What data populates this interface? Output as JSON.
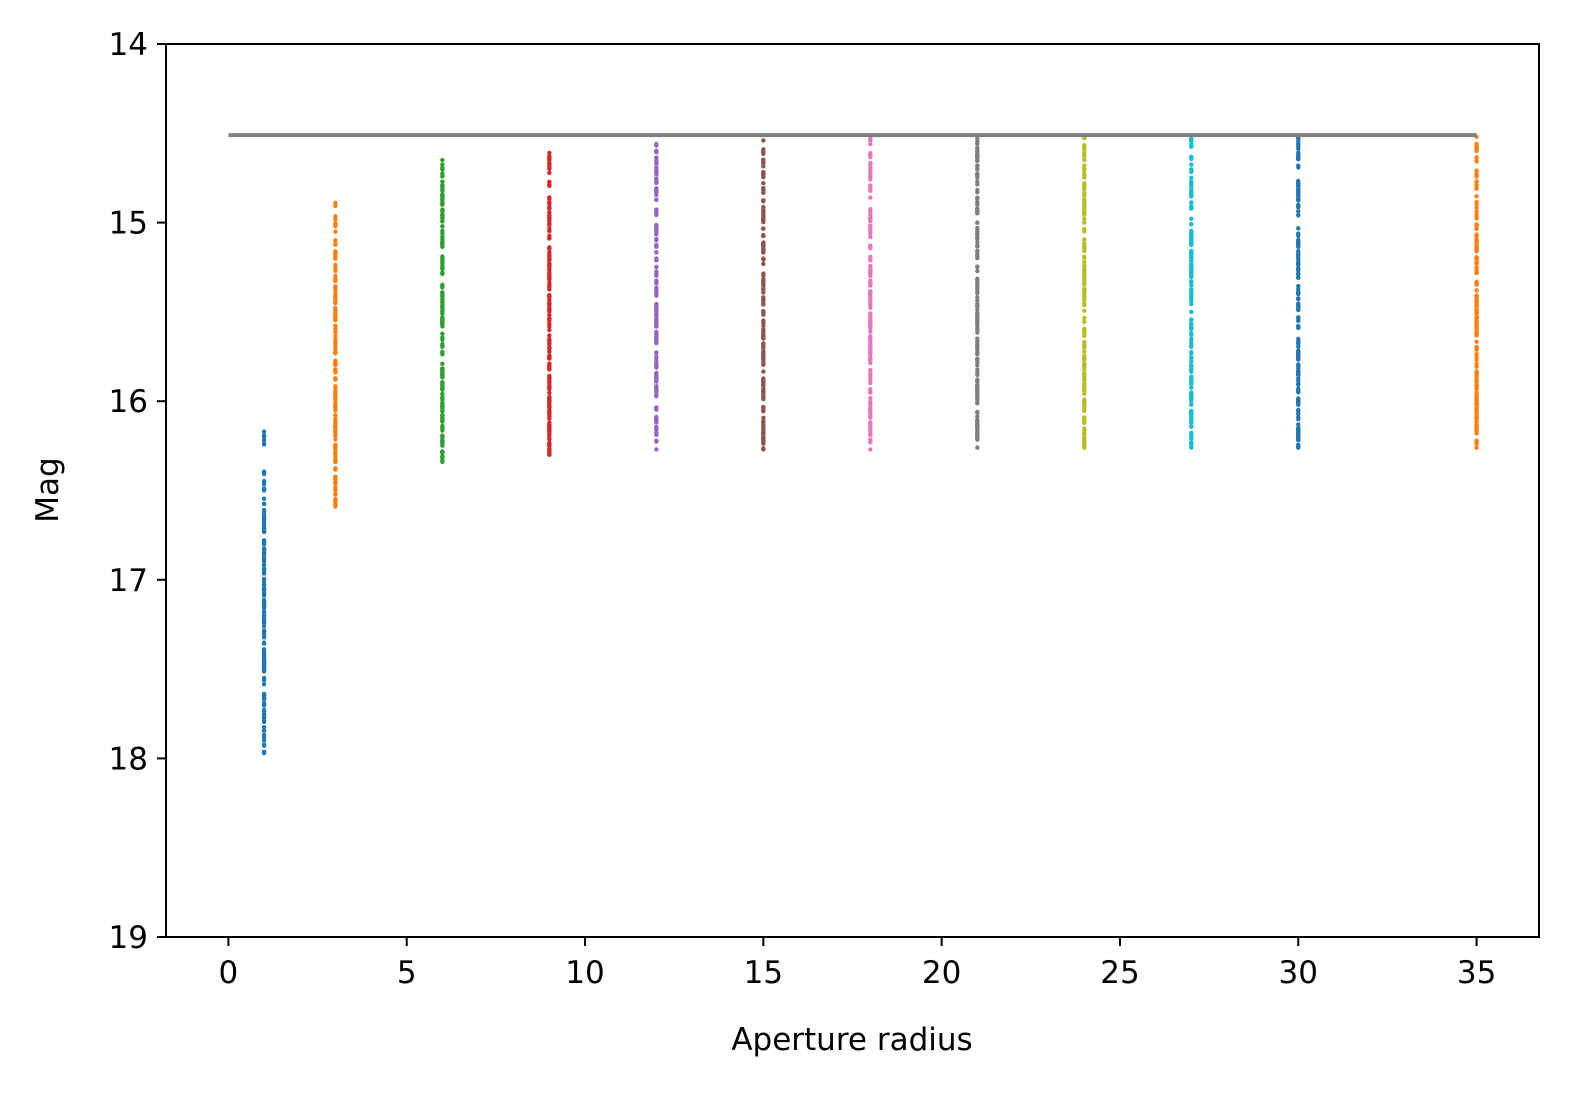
{
  "chart_data": {
    "type": "scatter",
    "title": "",
    "xlabel": "Aperture radius",
    "ylabel": "Mag",
    "xlim": [
      -1.75,
      36.75
    ],
    "ylim": [
      19,
      14
    ],
    "y_inverted": true,
    "grid": false,
    "legend": "none",
    "xticks": [
      "0",
      "5",
      "10",
      "15",
      "20",
      "25",
      "30",
      "35"
    ],
    "xtick_values": [
      0,
      5,
      10,
      15,
      20,
      25,
      30,
      35
    ],
    "yticks": [
      "14",
      "15",
      "16",
      "17",
      "18",
      "19"
    ],
    "ytick_values": [
      14,
      15,
      16,
      17,
      18,
      19
    ],
    "reference_line": {
      "x": [
        0,
        35
      ],
      "y": 14.51,
      "color": "#808080"
    },
    "series": [
      {
        "x": 1,
        "color": "#1f77b4",
        "min": 16.17,
        "max": 17.97
      },
      {
        "x": 3,
        "color": "#ff7f0e",
        "min": 14.89,
        "max": 16.59
      },
      {
        "x": 6,
        "color": "#2ca02c",
        "min": 14.65,
        "max": 16.34
      },
      {
        "x": 9,
        "color": "#d62728",
        "min": 14.61,
        "max": 16.3
      },
      {
        "x": 12,
        "color": "#9467bd",
        "min": 14.56,
        "max": 16.27
      },
      {
        "x": 15,
        "color": "#8c564b",
        "min": 14.54,
        "max": 16.27
      },
      {
        "x": 18,
        "color": "#e377c2",
        "min": 14.53,
        "max": 16.27
      },
      {
        "x": 21,
        "color": "#7f7f7f",
        "min": 14.53,
        "max": 16.26
      },
      {
        "x": 24,
        "color": "#bcbd22",
        "min": 14.52,
        "max": 16.26
      },
      {
        "x": 27,
        "color": "#17becf",
        "min": 14.52,
        "max": 16.26
      },
      {
        "x": 30,
        "color": "#1f77b4",
        "min": 14.52,
        "max": 16.26
      },
      {
        "x": 35,
        "color": "#ff7f0e",
        "min": 14.52,
        "max": 16.26
      }
    ]
  }
}
